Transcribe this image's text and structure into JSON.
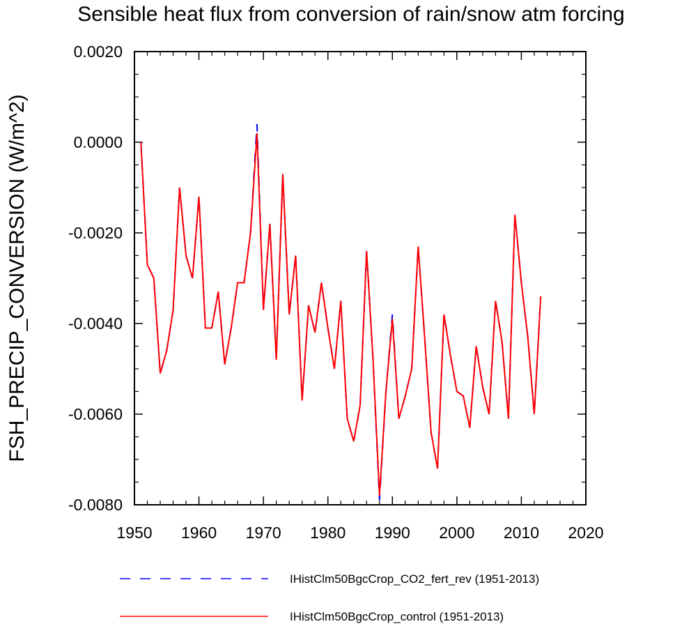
{
  "chart_data": {
    "type": "line",
    "title": "Sensible heat flux from conversion of rain/snow atm forcing",
    "xlabel": "",
    "ylabel": "FSH_PRECIP_CONVERSION  (W/m^2)",
    "xlim": [
      1950,
      2020
    ],
    "ylim": [
      -0.008,
      0.002
    ],
    "x_ticks": [
      1950,
      1960,
      1970,
      1980,
      1990,
      2000,
      2010,
      2020
    ],
    "x_tick_labels": [
      "1950",
      "1960",
      "1970",
      "1980",
      "1990",
      "2000",
      "2010",
      "2020"
    ],
    "y_ticks": [
      0.002,
      0.0,
      -0.002,
      -0.004,
      -0.006,
      -0.008
    ],
    "y_tick_labels": [
      "0.0020",
      "0.0000",
      "-0.0020",
      "-0.0040",
      "-0.0060",
      "-0.0080"
    ],
    "grid": false,
    "legend_position": "bottom",
    "x": [
      1951,
      1952,
      1953,
      1954,
      1955,
      1956,
      1957,
      1958,
      1959,
      1960,
      1961,
      1962,
      1963,
      1964,
      1965,
      1966,
      1967,
      1968,
      1969,
      1970,
      1971,
      1972,
      1973,
      1974,
      1975,
      1976,
      1977,
      1978,
      1979,
      1980,
      1981,
      1982,
      1983,
      1984,
      1985,
      1986,
      1987,
      1988,
      1989,
      1990,
      1991,
      1992,
      1993,
      1994,
      1995,
      1996,
      1997,
      1998,
      1999,
      2000,
      2001,
      2002,
      2003,
      2004,
      2005,
      2006,
      2007,
      2008,
      2009,
      2010,
      2011,
      2012,
      2013
    ],
    "series": [
      {
        "name": "IHistClm50BgcCrop_CO2_fert_rev (1951-2013)",
        "color": "#0000ff",
        "style": "dashed",
        "values": [
          0.0,
          -0.0027,
          -0.003,
          -0.0051,
          -0.0046,
          -0.0037,
          -0.001,
          -0.0025,
          -0.003,
          -0.0012,
          -0.0041,
          -0.0041,
          -0.0033,
          -0.0049,
          -0.0041,
          -0.0031,
          -0.0031,
          -0.002,
          0.0004,
          -0.0037,
          -0.0018,
          -0.0048,
          -0.0007,
          -0.0038,
          -0.0025,
          -0.0057,
          -0.0036,
          -0.0042,
          -0.0031,
          -0.0041,
          -0.005,
          -0.0035,
          -0.0061,
          -0.0066,
          -0.0058,
          -0.0024,
          -0.0048,
          -0.0079,
          -0.0055,
          -0.0038,
          -0.0061,
          -0.0056,
          -0.005,
          -0.0023,
          -0.0043,
          -0.0064,
          -0.0072,
          -0.0038,
          -0.0047,
          -0.0055,
          -0.0056,
          -0.0063,
          -0.0045,
          -0.0054,
          -0.006,
          -0.0035,
          -0.0044,
          -0.0061,
          -0.0016,
          -0.0031,
          -0.0043,
          -0.006,
          -0.0034
        ]
      },
      {
        "name": "IHistClm50BgcCrop_control (1951-2013)",
        "color": "#ff0000",
        "style": "solid",
        "values": [
          0.0,
          -0.0027,
          -0.003,
          -0.0051,
          -0.0046,
          -0.0037,
          -0.001,
          -0.0025,
          -0.003,
          -0.0012,
          -0.0041,
          -0.0041,
          -0.0033,
          -0.0049,
          -0.0041,
          -0.0031,
          -0.0031,
          -0.002,
          0.0002,
          -0.0037,
          -0.0018,
          -0.0048,
          -0.0007,
          -0.0038,
          -0.0025,
          -0.0057,
          -0.0036,
          -0.0042,
          -0.0031,
          -0.0041,
          -0.005,
          -0.0035,
          -0.0061,
          -0.0066,
          -0.0058,
          -0.0024,
          -0.0048,
          -0.0078,
          -0.0055,
          -0.0039,
          -0.0061,
          -0.0056,
          -0.005,
          -0.0023,
          -0.0043,
          -0.0064,
          -0.0072,
          -0.0038,
          -0.0047,
          -0.0055,
          -0.0056,
          -0.0063,
          -0.0045,
          -0.0054,
          -0.006,
          -0.0035,
          -0.0044,
          -0.0061,
          -0.0016,
          -0.0031,
          -0.0043,
          -0.006,
          -0.0034
        ]
      }
    ]
  }
}
